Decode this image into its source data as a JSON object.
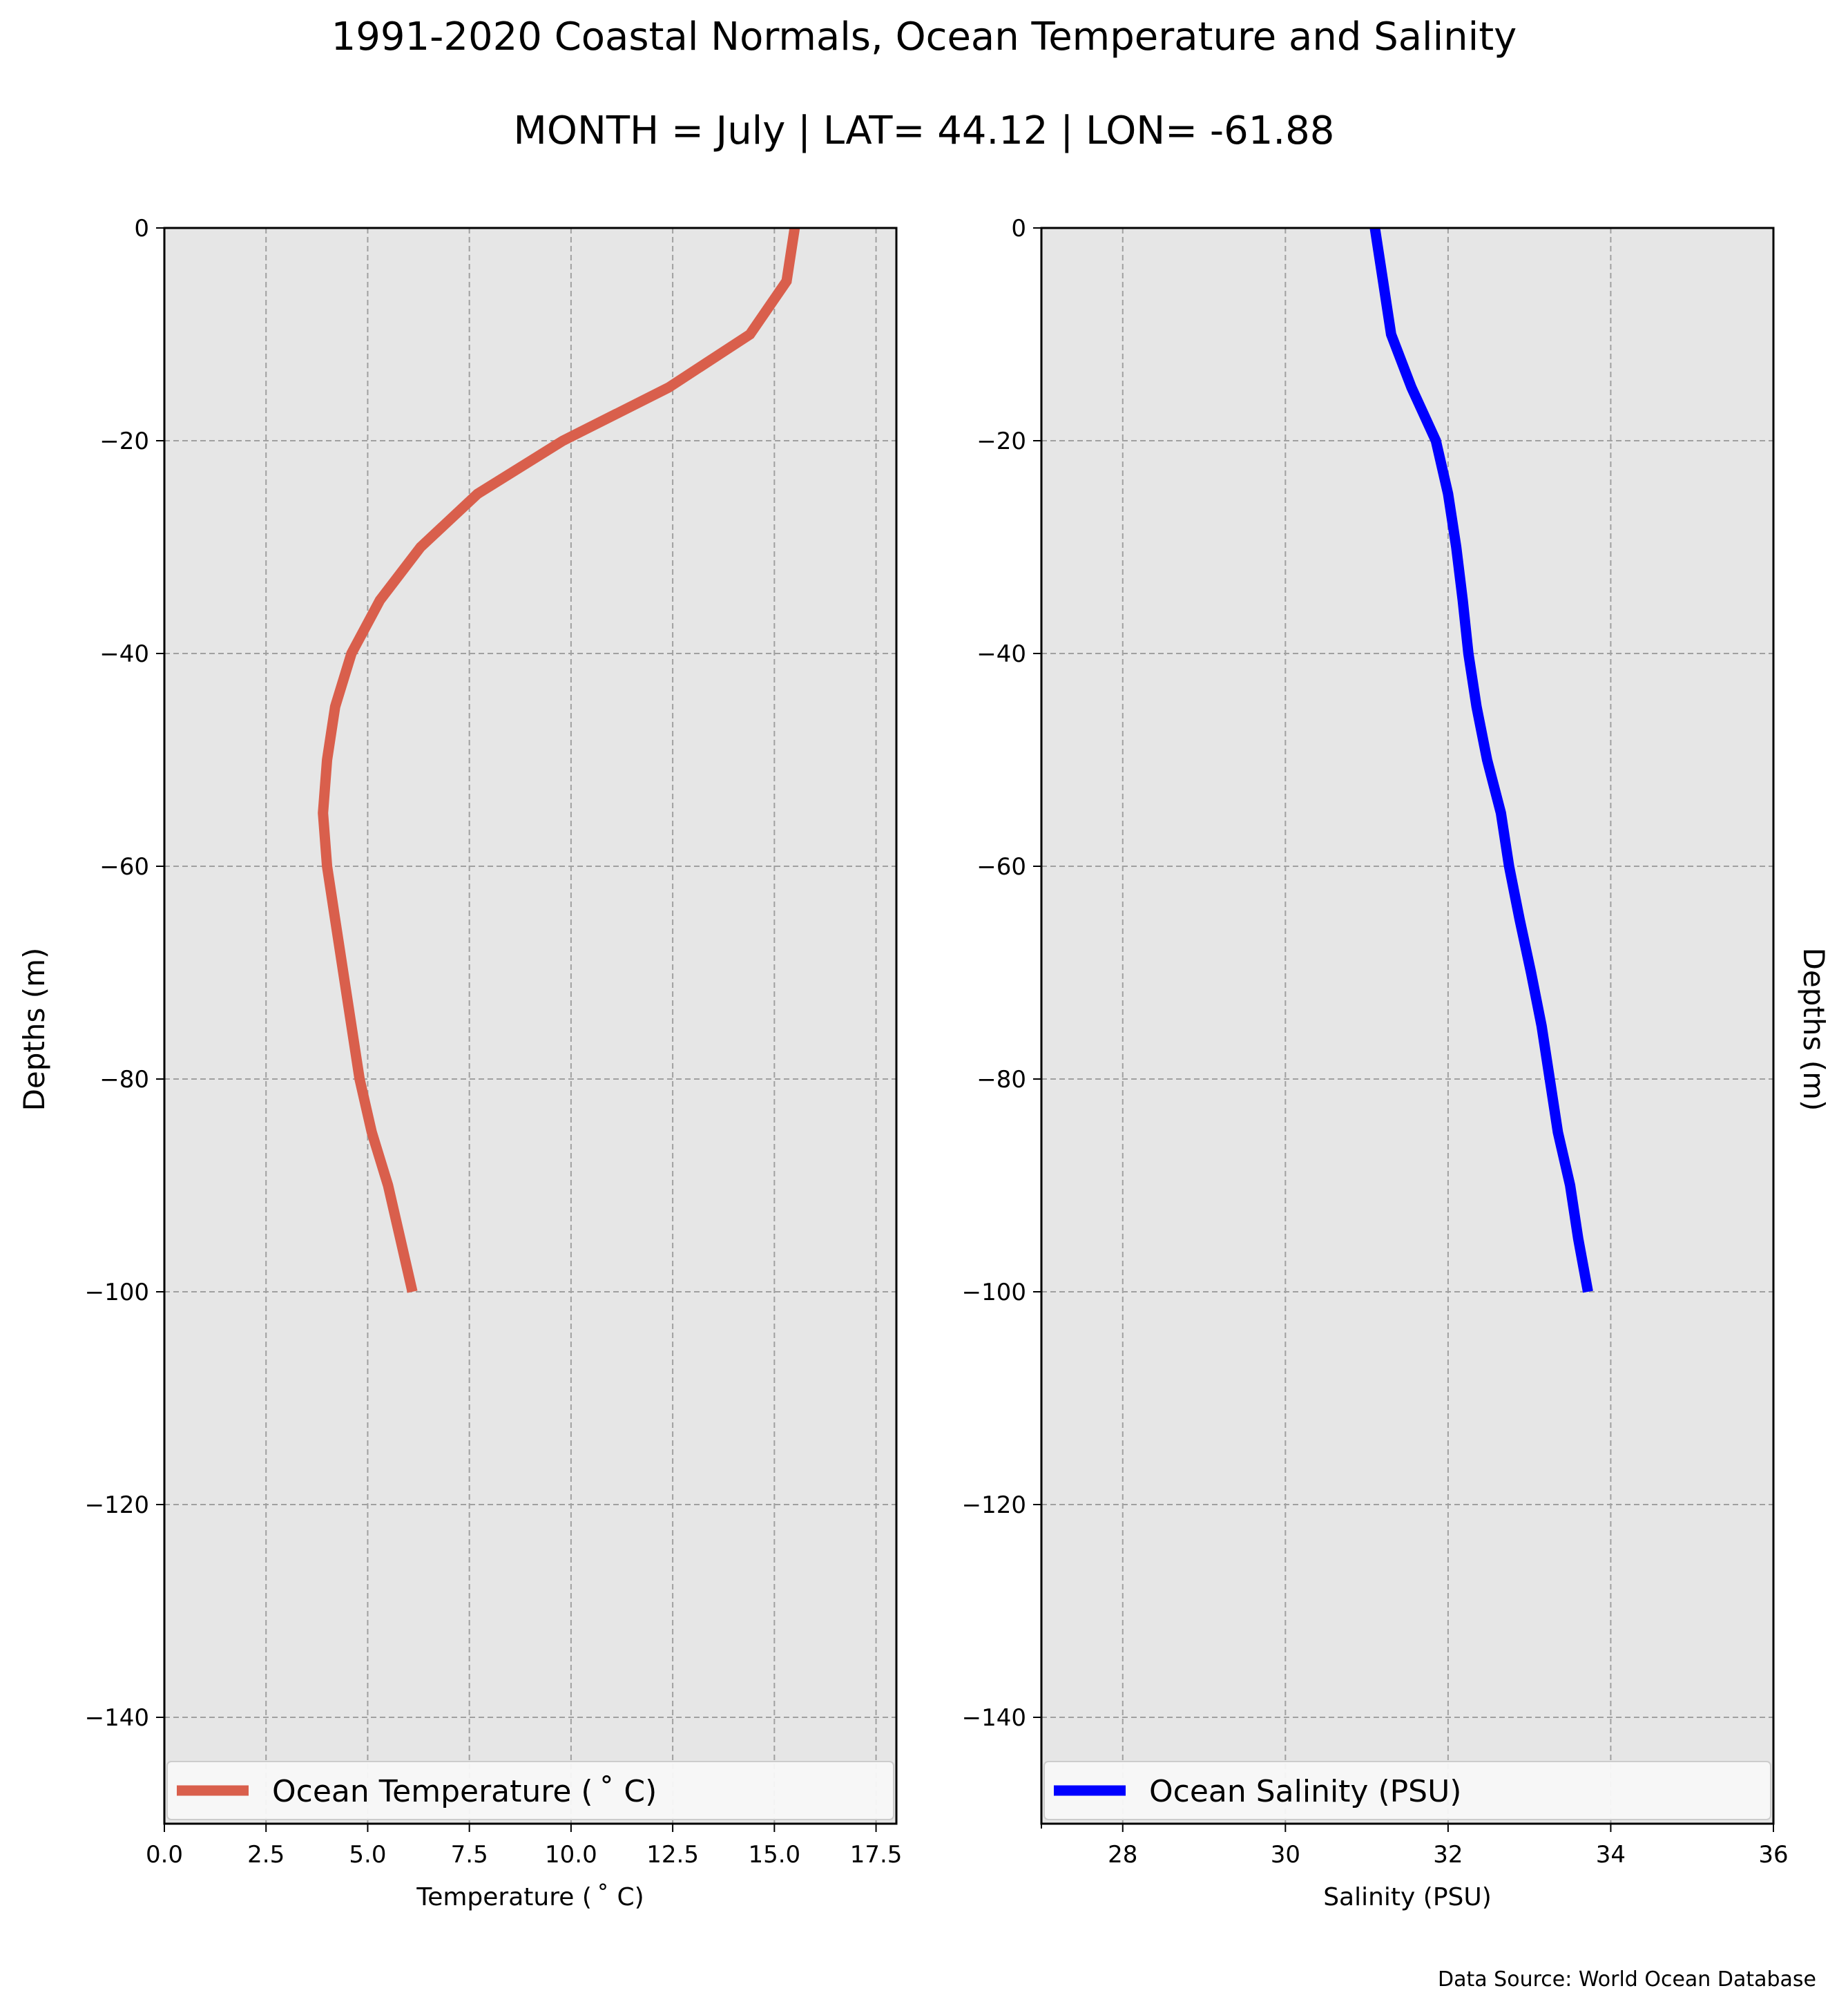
{
  "figure": {
    "title": "1991-2020 Coastal Normals, Ocean Temperature and Salinity",
    "subtitle": "MONTH = July | LAT= 44.12 | LON= -61.88",
    "source": "Data Source: World Ocean Database",
    "background": "#ffffff",
    "plot_background": "#e6e6e6",
    "grid_color": "#a0a0a0"
  },
  "chart_data": [
    {
      "type": "line",
      "series": [
        {
          "name": "Ocean Temperature ($^\\circ$C)",
          "legend_label": "Ocean Temperature ( ˚ C)",
          "color": "#d95f4c",
          "x": [
            15.5,
            15.3,
            14.4,
            12.4,
            9.8,
            7.7,
            6.3,
            5.3,
            4.6,
            4.2,
            4.0,
            3.9,
            4.0,
            4.2,
            4.4,
            4.6,
            4.8,
            5.1,
            5.5,
            5.8,
            6.1
          ],
          "y": [
            0,
            -5,
            -10,
            -15,
            -20,
            -25,
            -30,
            -35,
            -40,
            -45,
            -50,
            -55,
            -60,
            -65,
            -70,
            -75,
            -80,
            -85,
            -90,
            -95,
            -100
          ]
        }
      ],
      "xlabel": "Temperature ( ˚ C)",
      "ylabel": "Depths (m)",
      "xlim": [
        0,
        18
      ],
      "ylim": [
        -150,
        0
      ],
      "xticks": [
        0,
        2.5,
        5,
        7.5,
        10,
        12.5,
        15,
        17.5
      ],
      "xtick_labels": [
        "0.0",
        "2.5",
        "5.0",
        "7.5",
        "10.0",
        "12.5",
        "15.0",
        "17.5"
      ],
      "yticks": [
        0,
        -20,
        -40,
        -60,
        -80,
        -100,
        -120,
        -140
      ],
      "ytick_labels": [
        "0",
        "−20",
        "−40",
        "−60",
        "−80",
        "−100",
        "−120",
        "−140"
      ],
      "grid": true,
      "legend_position": "bottom"
    },
    {
      "type": "line",
      "series": [
        {
          "name": "Ocean Salinity (PSU)",
          "legend_label": "Ocean Salinity (PSU)",
          "color": "#0000ff",
          "x": [
            31.1,
            31.2,
            31.3,
            31.55,
            31.85,
            32.0,
            32.1,
            32.18,
            32.25,
            32.35,
            32.48,
            32.65,
            32.75,
            32.88,
            33.02,
            33.15,
            33.25,
            33.35,
            33.5,
            33.6,
            33.72
          ],
          "y": [
            0,
            -5,
            -10,
            -15,
            -20,
            -25,
            -30,
            -35,
            -40,
            -45,
            -50,
            -55,
            -60,
            -65,
            -70,
            -75,
            -80,
            -85,
            -90,
            -95,
            -100
          ]
        }
      ],
      "xlabel": "Salinity (PSU)",
      "ylabel": "Depths (m)",
      "xlim": [
        27,
        36
      ],
      "ylim": [
        -150,
        0
      ],
      "xticks": [
        28,
        30,
        32,
        34,
        36
      ],
      "xtick_labels": [
        "28",
        "30",
        "32",
        "34",
        "36"
      ],
      "yticks": [
        0,
        -20,
        -40,
        -60,
        -80,
        -100,
        -120,
        -140
      ],
      "ytick_labels": [
        "0",
        "−20",
        "−40",
        "−60",
        "−80",
        "−100",
        "−120",
        "−140"
      ],
      "grid": true,
      "legend_position": "bottom"
    }
  ]
}
